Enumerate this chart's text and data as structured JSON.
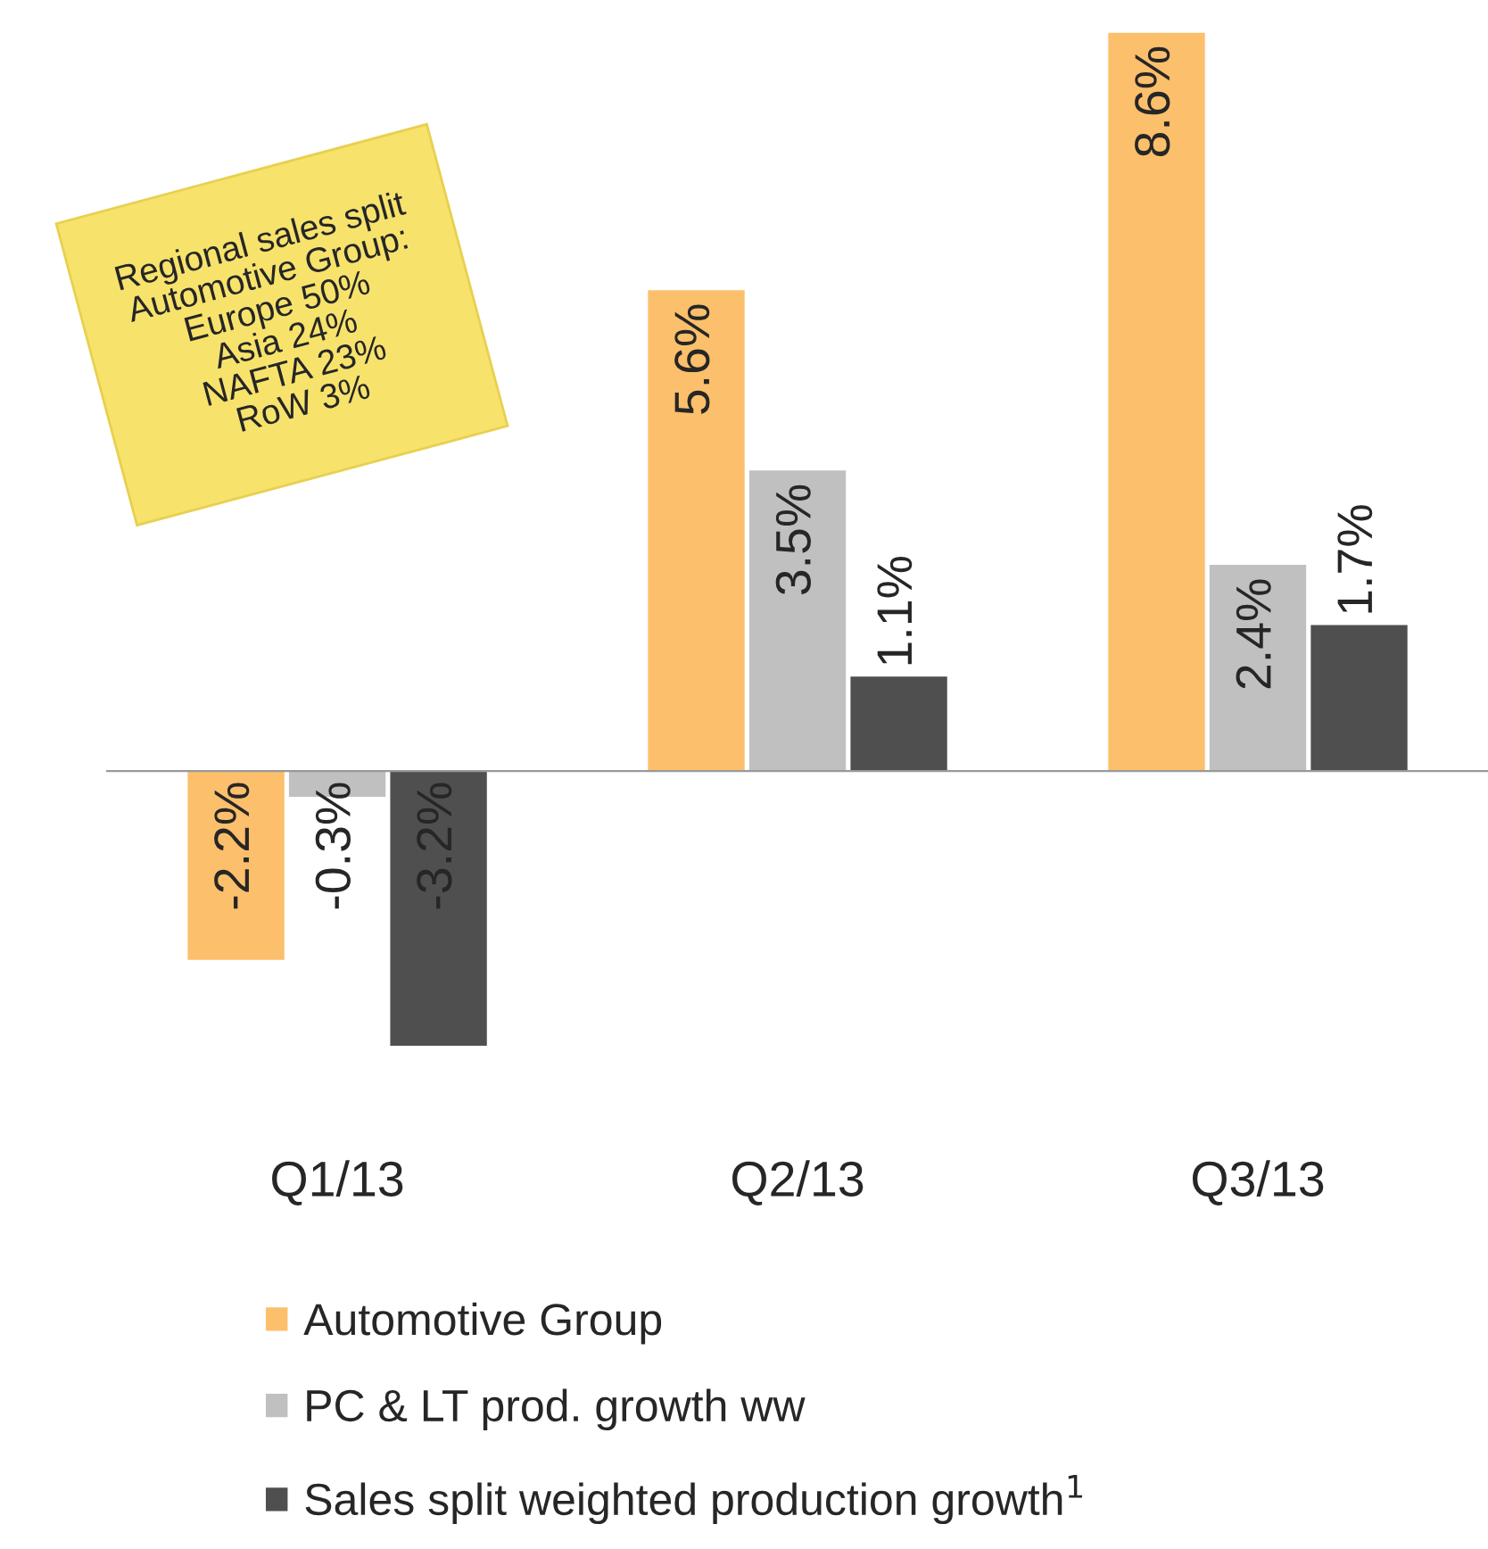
{
  "chart_data": {
    "type": "bar",
    "categories": [
      "Q1/13",
      "Q2/13",
      "Q3/13"
    ],
    "series": [
      {
        "name": "Automotive Group",
        "color": "#fcbf6b",
        "values": [
          -2.2,
          5.6,
          8.6
        ],
        "value_labels": [
          "-2.2%",
          "5.6%",
          "8.6%"
        ]
      },
      {
        "name": "PC & LT prod. growth ww",
        "color": "#c0c0c0",
        "values": [
          -0.3,
          3.5,
          2.4
        ],
        "value_labels": [
          "-0.3%",
          "3.5%",
          "2.4%"
        ]
      },
      {
        "name": "Sales split weighted production growth$^{1}$",
        "color": "#4f4f4f",
        "values": [
          -3.2,
          1.1,
          1.7
        ],
        "value_labels": [
          "-3.2%",
          "1.1%",
          "1.7%"
        ]
      }
    ],
    "legend": "bottom",
    "annotations": [
      "Regional sales split\nAutomotive Group:\nEurope 50%\nAsia 24%\nNAFTA 23%\nRoW 3%"
    ]
  }
}
